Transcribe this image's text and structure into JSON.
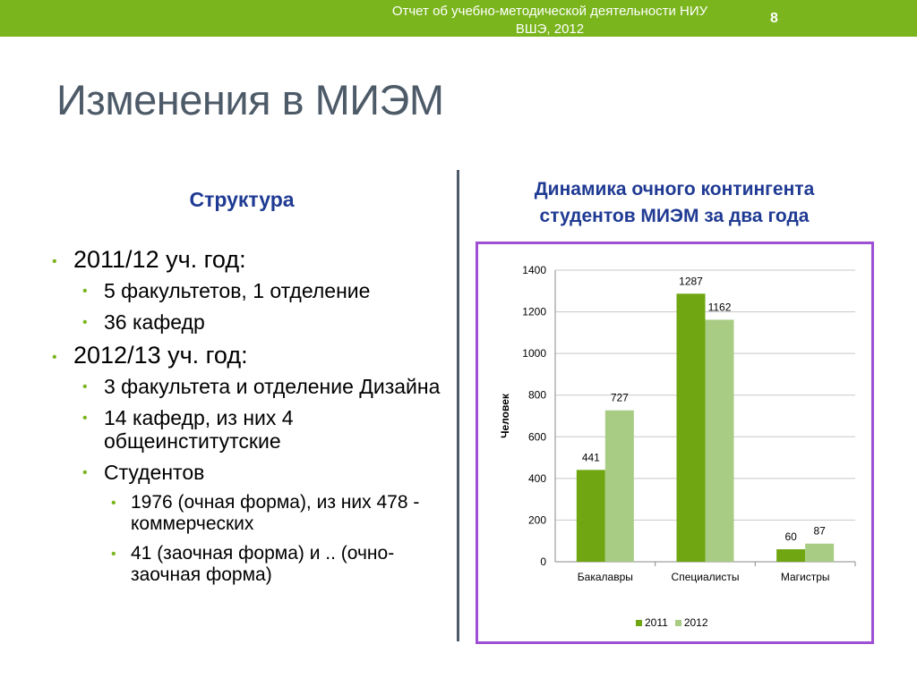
{
  "header": {
    "report_line1": "Отчет об учебно-методической деятельности НИУ",
    "report_line2": "ВШЭ, 2012",
    "page_number": "8"
  },
  "slide": {
    "title": "Изменения в МИЭМ",
    "left_heading": "Структура",
    "right_heading_line1": "Динамика очного контингента",
    "right_heading_line2": "студентов МИЭМ за два года"
  },
  "bullets": [
    {
      "level": 1,
      "text": "2011/12 уч. год:"
    },
    {
      "level": 2,
      "text": "5 факультетов, 1 отделение"
    },
    {
      "level": 2,
      "text": "36 кафедр"
    },
    {
      "level": 1,
      "text": "2012/13 уч. год:"
    },
    {
      "level": 2,
      "text": "3 факультета и отделение Дизайна"
    },
    {
      "level": 2,
      "text": "14 кафедр, из них 4 общеинститутские"
    },
    {
      "level": 2,
      "text": "Студентов"
    },
    {
      "level": 3,
      "text": "1976 (очная форма), из них 478 - коммерческих"
    },
    {
      "level": 3,
      "text": "41 (заочная форма) и .. (очно-заочная форма)"
    }
  ],
  "colors": {
    "accent_green": "#7ab51d",
    "series_2011": "#6fa611",
    "series_2012": "#a9cc84",
    "heading_blue": "#1f3a93",
    "chart_border": "#9f4fd3"
  },
  "chart_data": {
    "type": "bar",
    "categories": [
      "Бакалавры",
      "Специалисты",
      "Магистры"
    ],
    "series": [
      {
        "name": "2011",
        "values": [
          441,
          1287,
          60
        ]
      },
      {
        "name": "2012",
        "values": [
          727,
          1162,
          87
        ]
      }
    ],
    "ylabel": "Человек",
    "ylim": [
      0,
      1400
    ],
    "yticks": [
      0,
      200,
      400,
      600,
      800,
      1000,
      1200,
      1400
    ],
    "grid": true,
    "legend": "bottom"
  }
}
